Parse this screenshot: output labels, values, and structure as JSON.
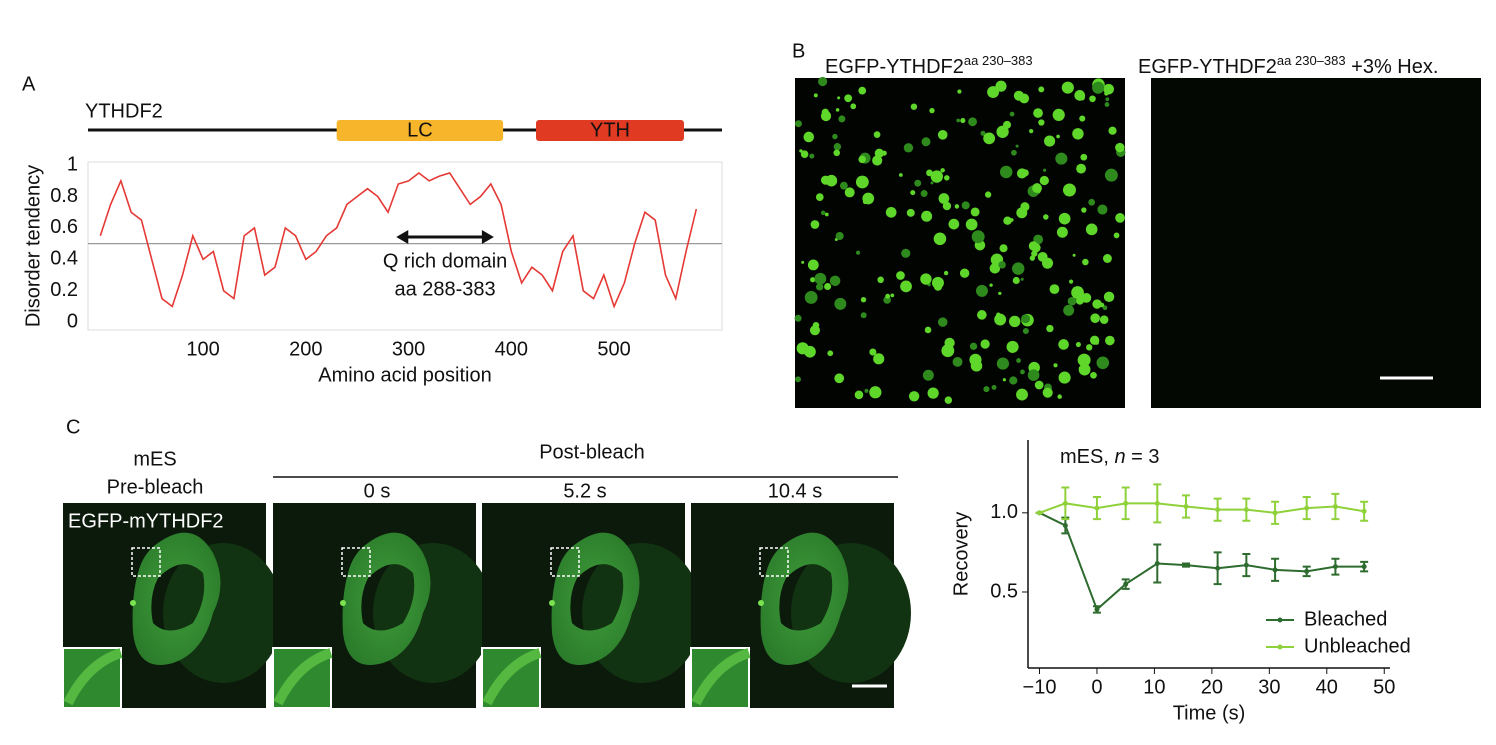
{
  "panel_labels": [
    "A",
    "B",
    "C"
  ],
  "chart_data": [
    {
      "type": "line",
      "protein": "YTHDF2",
      "domains": [
        {
          "label": "LC",
          "start": 230,
          "end": 392,
          "color": "#f7b52c"
        },
        {
          "label": "YTH",
          "start": 424,
          "end": 568,
          "color": "#e03a22"
        }
      ],
      "ylabel": "Disorder tendency",
      "xlabel": "Amino acid position",
      "x": [
        0,
        10,
        20,
        30,
        40,
        50,
        60,
        70,
        80,
        90,
        100,
        110,
        120,
        130,
        140,
        150,
        160,
        170,
        180,
        190,
        200,
        210,
        220,
        230,
        240,
        250,
        260,
        270,
        280,
        290,
        300,
        310,
        320,
        330,
        340,
        350,
        360,
        370,
        380,
        390,
        400,
        410,
        420,
        430,
        440,
        450,
        460,
        470,
        480,
        490,
        500,
        510,
        520,
        530,
        540,
        550,
        560,
        570,
        580
      ],
      "series": [
        {
          "name": "Disorder tendency",
          "color": "#e53935",
          "values": [
            0.55,
            0.75,
            0.9,
            0.7,
            0.65,
            0.4,
            0.15,
            0.1,
            0.3,
            0.55,
            0.4,
            0.45,
            0.2,
            0.15,
            0.55,
            0.6,
            0.3,
            0.35,
            0.6,
            0.55,
            0.4,
            0.45,
            0.55,
            0.6,
            0.75,
            0.8,
            0.85,
            0.8,
            0.7,
            0.88,
            0.9,
            0.95,
            0.9,
            0.93,
            0.95,
            0.85,
            0.75,
            0.8,
            0.88,
            0.75,
            0.45,
            0.25,
            0.35,
            0.3,
            0.2,
            0.45,
            0.55,
            0.2,
            0.15,
            0.3,
            0.1,
            0.25,
            0.5,
            0.7,
            0.65,
            0.3,
            0.15,
            0.45,
            0.72
          ]
        }
      ],
      "threshold": 0.5,
      "annotation": {
        "text": [
          "Q rich domain",
          "aa 288-383"
        ],
        "start": 288,
        "end": 383
      },
      "xlim": [
        -12,
        605
      ],
      "xticks": [
        100,
        200,
        300,
        400,
        500
      ],
      "ylim": [
        -0.05,
        1.02
      ],
      "yticks": [
        0,
        0.2,
        0.4,
        0.6,
        0.8,
        1
      ]
    },
    {
      "type": "line",
      "title_parts": [
        "mES, ",
        "n",
        " = 3"
      ],
      "ylabel": "Recovery",
      "xlabel": "Time (s)",
      "x": [
        -10,
        -5.5,
        0,
        5,
        10.5,
        15.5,
        21,
        26,
        31,
        36.5,
        41.5,
        46.5
      ],
      "series": [
        {
          "name": "Bleached",
          "color": "#2e6b2e",
          "values": [
            1.0,
            0.92,
            0.39,
            0.55,
            0.68,
            0.67,
            0.65,
            0.67,
            0.64,
            0.63,
            0.66,
            0.66
          ],
          "errors": [
            0,
            0.05,
            0.02,
            0.03,
            0.12,
            0.01,
            0.1,
            0.07,
            0.07,
            0.03,
            0.05,
            0.03
          ]
        },
        {
          "name": "Unbleached",
          "color": "#8fd13a",
          "values": [
            1.0,
            1.06,
            1.03,
            1.06,
            1.06,
            1.04,
            1.02,
            1.02,
            1.0,
            1.03,
            1.04,
            1.01
          ],
          "errors": [
            0,
            0.1,
            0.07,
            0.1,
            0.12,
            0.07,
            0.07,
            0.07,
            0.07,
            0.07,
            0.08,
            0.06
          ]
        }
      ],
      "legend": "lower right",
      "xlim": [
        -12,
        51
      ],
      "xticks": [
        {
          "value": -10,
          "label": "−10"
        },
        0,
        10,
        20,
        30,
        40,
        50
      ],
      "ylim": [
        0.02,
        1.46
      ],
      "yticks": [
        0.5,
        {
          "value": 1,
          "label": "1.0"
        }
      ]
    }
  ],
  "panel_b": {
    "images": [
      {
        "label": "EGFP-YTHDF2",
        "superscript": "aa 230–383"
      },
      {
        "label": "EGFP-YTHDF2",
        "superscript": "aa 230–383",
        "suffix": " +3% Hex."
      }
    ]
  },
  "panel_c": {
    "pre": [
      "mES",
      "Pre-bleach"
    ],
    "post": "Post-bleach",
    "times": [
      "0 s",
      "5.2 s",
      "10.4 s"
    ],
    "stain": "EGFP-mYTHDF2"
  }
}
